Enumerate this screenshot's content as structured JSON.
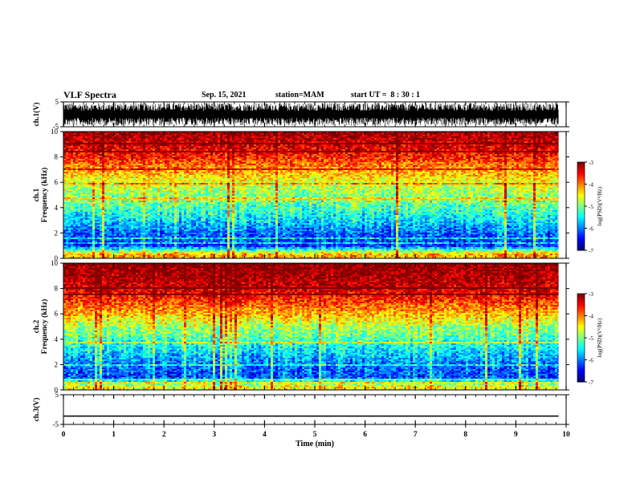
{
  "header": {
    "title": "VLF Spectra",
    "date": "Sep. 15, 2021",
    "station": "station=MAM",
    "start": "start UT =  8 : 30 : 1"
  },
  "chart_data": [
    {
      "type": "line",
      "panel": "ch1-waveform",
      "ylabel": "ch.1(V)",
      "ylim": [
        -5,
        5
      ],
      "yticks": [
        "5",
        "-5"
      ],
      "description_series": "dense noisy waveform filling most of range",
      "color": "#000000"
    },
    {
      "type": "heatmap",
      "panel": "ch1-spectrogram",
      "ylabel": "ch.1\nFrequency (kHz)",
      "ylim": [
        0,
        10
      ],
      "yticks": [
        "0",
        "2",
        "4",
        "6",
        "8",
        "10"
      ],
      "colorbar": {
        "label": "log(PSD)(V²/Hz)",
        "ticks": [
          "-3",
          "-4",
          "-5",
          "-6",
          "-7"
        ],
        "range": [
          -7,
          -3
        ]
      },
      "profile_khz_to_level": [
        [
          0.3,
          -4.2
        ],
        [
          1,
          -6.3
        ],
        [
          2,
          -6.1
        ],
        [
          3,
          -5.6
        ],
        [
          4,
          -5.2
        ],
        [
          5,
          -4.9
        ],
        [
          6,
          -4.6
        ],
        [
          7,
          -4.1
        ],
        [
          8,
          -3.6
        ],
        [
          9,
          -3.3
        ],
        [
          10,
          -3.1
        ]
      ]
    },
    {
      "type": "heatmap",
      "panel": "ch2-spectrogram",
      "ylabel": "ch.2\nFrequency (kHz)",
      "ylim": [
        0,
        10
      ],
      "yticks": [
        "0",
        "2",
        "4",
        "6",
        "8",
        "10"
      ],
      "colorbar": {
        "label": "log(PSD)(V²/Hz)",
        "ticks": [
          "-3",
          "-4",
          "-5",
          "-6",
          "-7"
        ],
        "range": [
          -7,
          -3
        ]
      },
      "profile_khz_to_level": [
        [
          0.3,
          -4.5
        ],
        [
          1,
          -6.2
        ],
        [
          2,
          -6.0
        ],
        [
          3,
          -5.6
        ],
        [
          4,
          -5.2
        ],
        [
          5,
          -4.8
        ],
        [
          6,
          -4.2
        ],
        [
          7,
          -3.7
        ],
        [
          8,
          -3.3
        ],
        [
          9,
          -3.1
        ],
        [
          10,
          -3.0
        ]
      ]
    },
    {
      "type": "line",
      "panel": "ch3-waveform",
      "ylabel": "ch.3(V)",
      "ylim": [
        -5,
        5
      ],
      "yticks": [
        "5",
        "-5"
      ],
      "x": [
        0,
        9.85
      ],
      "y": [
        -2.2,
        -2.2
      ],
      "color": "#000000"
    }
  ],
  "xaxis": {
    "label": "Time (min)",
    "range": [
      0,
      10
    ],
    "ticks": [
      "0",
      "1",
      "2",
      "3",
      "4",
      "5",
      "6",
      "7",
      "8",
      "9",
      "10"
    ],
    "data_end": 9.85
  }
}
